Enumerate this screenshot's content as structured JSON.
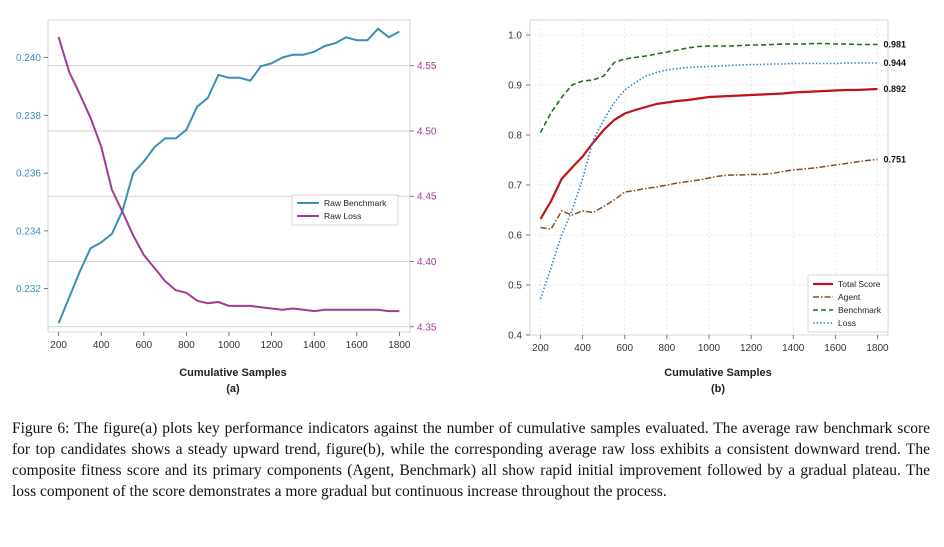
{
  "caption": "Figure 6: The figure(a) plots key performance indicators against the number of cumulative samples evaluated. The average raw benchmark score for top candidates shows a steady upward trend, figure(b), while the corresponding average raw loss exhibits a consistent downward trend. The composite fitness score and its primary components (Agent, Benchmark) all show rapid initial improvement followed by a gradual plateau. The loss component of the score demonstrates a more gradual but continuous increase throughout the process.",
  "colors": {
    "benchmark_a": "#3a8fb7",
    "loss_a": "#a23b92",
    "total": "#c0121a",
    "agent": "#8b4a24",
    "benchmark_b": "#1f6e1f",
    "loss_b": "#2f86c9"
  },
  "chart_data": [
    {
      "type": "line",
      "panel_label": "(a)",
      "xlabel": "Cumulative Samples",
      "xlim": [
        150,
        1850
      ],
      "x_ticks": [
        "200",
        "400",
        "600",
        "800",
        "1000",
        "1200",
        "1400",
        "1600",
        "1800"
      ],
      "y_left_lim": [
        0.2305,
        0.2413
      ],
      "y_left_ticks": [
        "0.232",
        "0.234",
        "0.236",
        "0.238",
        "0.240"
      ],
      "y_right_lim": [
        4.346,
        4.585
      ],
      "y_right_ticks": [
        "4.35",
        "4.40",
        "4.45",
        "4.50",
        "4.55"
      ],
      "legend_position": "center-right",
      "series": [
        {
          "name": "Raw Benchmark",
          "axis": "left",
          "x": [
            200,
            250,
            300,
            350,
            400,
            450,
            500,
            550,
            600,
            650,
            700,
            750,
            800,
            850,
            900,
            950,
            1000,
            1050,
            1100,
            1150,
            1200,
            1250,
            1300,
            1350,
            1400,
            1450,
            1500,
            1550,
            1600,
            1650,
            1700,
            1750,
            1800
          ],
          "values": [
            0.2308,
            0.2317,
            0.2326,
            0.2334,
            0.2336,
            0.2339,
            0.2347,
            0.236,
            0.2364,
            0.2369,
            0.2372,
            0.2372,
            0.2375,
            0.2383,
            0.2386,
            0.2394,
            0.2393,
            0.2393,
            0.2392,
            0.2397,
            0.2398,
            0.24,
            0.2401,
            0.2401,
            0.2402,
            0.2404,
            0.2405,
            0.2407,
            0.2406,
            0.2406,
            0.241,
            0.2407,
            0.2409
          ]
        },
        {
          "name": "Raw Loss",
          "axis": "right",
          "x": [
            200,
            250,
            300,
            350,
            400,
            450,
            500,
            550,
            600,
            650,
            700,
            750,
            800,
            850,
            900,
            950,
            1000,
            1050,
            1100,
            1150,
            1200,
            1250,
            1300,
            1350,
            1400,
            1450,
            1500,
            1550,
            1600,
            1650,
            1700,
            1750,
            1800
          ],
          "values": [
            4.572,
            4.545,
            4.528,
            4.51,
            4.488,
            4.455,
            4.438,
            4.42,
            4.405,
            4.395,
            4.385,
            4.378,
            4.376,
            4.37,
            4.368,
            4.369,
            4.366,
            4.366,
            4.366,
            4.365,
            4.364,
            4.363,
            4.364,
            4.363,
            4.362,
            4.363,
            4.363,
            4.363,
            4.363,
            4.363,
            4.363,
            4.362,
            4.362
          ]
        }
      ]
    },
    {
      "type": "line",
      "panel_label": "(b)",
      "xlabel": "Cumulative Samples",
      "xlim": [
        150,
        1850
      ],
      "x_ticks": [
        "200",
        "400",
        "600",
        "800",
        "1000",
        "1200",
        "1400",
        "1600",
        "1800"
      ],
      "ylim": [
        0.4,
        1.03
      ],
      "y_ticks": [
        "0.4",
        "0.5",
        "0.6",
        "0.7",
        "0.8",
        "0.9",
        "1.0"
      ],
      "legend_position": "bottom-right",
      "series": [
        {
          "name": "Total Score",
          "end_label": "0.892",
          "x": [
            200,
            250,
            300,
            350,
            400,
            450,
            500,
            550,
            600,
            650,
            700,
            750,
            800,
            850,
            900,
            950,
            1000,
            1050,
            1100,
            1150,
            1200,
            1250,
            1300,
            1350,
            1400,
            1450,
            1500,
            1550,
            1600,
            1650,
            1700,
            1750,
            1800
          ],
          "values": [
            0.632,
            0.668,
            0.712,
            0.735,
            0.757,
            0.785,
            0.81,
            0.83,
            0.843,
            0.85,
            0.856,
            0.862,
            0.865,
            0.868,
            0.87,
            0.873,
            0.876,
            0.877,
            0.878,
            0.879,
            0.88,
            0.881,
            0.882,
            0.883,
            0.885,
            0.886,
            0.887,
            0.888,
            0.889,
            0.89,
            0.89,
            0.891,
            0.892
          ]
        },
        {
          "name": "Agent",
          "end_label": "0.751",
          "x": [
            200,
            250,
            300,
            350,
            400,
            450,
            500,
            550,
            600,
            650,
            700,
            750,
            800,
            850,
            900,
            950,
            1000,
            1050,
            1100,
            1150,
            1200,
            1250,
            1300,
            1350,
            1400,
            1450,
            1500,
            1550,
            1600,
            1650,
            1700,
            1750,
            1800
          ],
          "values": [
            0.615,
            0.612,
            0.648,
            0.64,
            0.648,
            0.645,
            0.657,
            0.67,
            0.686,
            0.689,
            0.693,
            0.696,
            0.7,
            0.704,
            0.707,
            0.71,
            0.714,
            0.718,
            0.72,
            0.72,
            0.721,
            0.721,
            0.723,
            0.727,
            0.73,
            0.732,
            0.734,
            0.737,
            0.74,
            0.743,
            0.746,
            0.749,
            0.751
          ]
        },
        {
          "name": "Benchmark",
          "end_label": "0.981",
          "x": [
            200,
            250,
            300,
            350,
            400,
            450,
            500,
            550,
            600,
            650,
            700,
            750,
            800,
            850,
            900,
            950,
            1000,
            1050,
            1100,
            1150,
            1200,
            1250,
            1300,
            1350,
            1400,
            1450,
            1500,
            1550,
            1600,
            1650,
            1700,
            1750,
            1800
          ],
          "values": [
            0.805,
            0.845,
            0.875,
            0.9,
            0.908,
            0.91,
            0.918,
            0.945,
            0.952,
            0.955,
            0.958,
            0.962,
            0.966,
            0.97,
            0.974,
            0.977,
            0.978,
            0.978,
            0.978,
            0.979,
            0.98,
            0.98,
            0.981,
            0.982,
            0.982,
            0.982,
            0.983,
            0.983,
            0.982,
            0.982,
            0.981,
            0.981,
            0.981
          ]
        },
        {
          "name": "Loss",
          "end_label": "0.944",
          "x": [
            200,
            250,
            300,
            350,
            400,
            450,
            500,
            550,
            600,
            650,
            700,
            750,
            800,
            850,
            900,
            950,
            1000,
            1050,
            1100,
            1150,
            1200,
            1250,
            1300,
            1350,
            1400,
            1450,
            1500,
            1550,
            1600,
            1650,
            1700,
            1750,
            1800
          ],
          "values": [
            0.472,
            0.535,
            0.6,
            0.65,
            0.712,
            0.79,
            0.83,
            0.865,
            0.89,
            0.905,
            0.918,
            0.925,
            0.93,
            0.933,
            0.935,
            0.936,
            0.937,
            0.938,
            0.939,
            0.94,
            0.941,
            0.941,
            0.942,
            0.942,
            0.943,
            0.943,
            0.943,
            0.943,
            0.943,
            0.944,
            0.944,
            0.944,
            0.944
          ]
        }
      ]
    }
  ]
}
